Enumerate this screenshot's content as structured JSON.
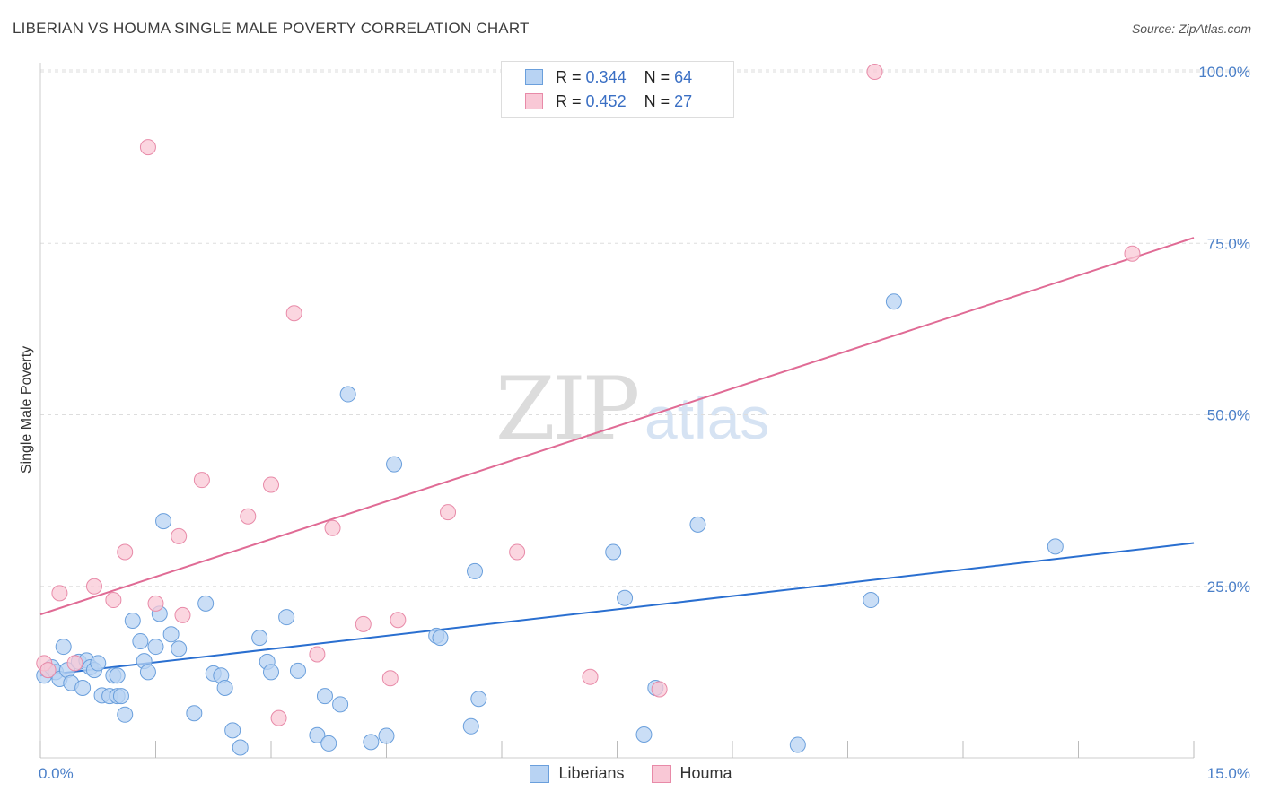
{
  "title": "LIBERIAN VS HOUMA SINGLE MALE POVERTY CORRELATION CHART",
  "source": "Source: ZipAtlas.com",
  "watermark": {
    "zip": "ZIP",
    "atlas": "atlas"
  },
  "legend": {
    "liberians": {
      "r_label": "R =",
      "r": "0.344",
      "n_label": "N =",
      "n": "64"
    },
    "houma": {
      "r_label": "R =",
      "r": "0.452",
      "n_label": "N =",
      "n": "27"
    }
  },
  "bottom_legend": {
    "liberians": "Liberians",
    "houma": "Houma"
  },
  "colors": {
    "liberians_fill": "#b8d3f3",
    "liberians_stroke": "#6a9fdc",
    "liberians_line": "#2a6fd0",
    "houma_fill": "#f9c8d6",
    "houma_stroke": "#e88aa8",
    "houma_line": "#e06b95"
  },
  "chart_data": {
    "type": "scatter",
    "title": "LIBERIAN VS HOUMA SINGLE MALE POVERTY CORRELATION CHART",
    "xlabel": "",
    "ylabel": "Single Male Poverty",
    "xlim": [
      0,
      15
    ],
    "ylim": [
      0,
      102
    ],
    "x_tick_labels": [
      "0.0%",
      "15.0%"
    ],
    "y_ticks": [
      25,
      50,
      75,
      100
    ],
    "y_tick_labels": [
      "25.0%",
      "50.0%",
      "75.0%",
      "100.0%"
    ],
    "grid": true,
    "legend_position": "top-center",
    "series": [
      {
        "name": "Liberians",
        "r": 0.344,
        "n": 64,
        "trend": {
          "x": [
            0,
            15
          ],
          "y": [
            12.0,
            31.3
          ]
        },
        "points": [
          [
            0.05,
            12.0
          ],
          [
            0.1,
            12.8
          ],
          [
            0.15,
            13.2
          ],
          [
            0.2,
            12.5
          ],
          [
            0.25,
            11.5
          ],
          [
            0.3,
            16.2
          ],
          [
            0.35,
            12.8
          ],
          [
            0.4,
            10.9
          ],
          [
            0.5,
            14.0
          ],
          [
            0.55,
            10.2
          ],
          [
            0.6,
            14.2
          ],
          [
            0.65,
            13.2
          ],
          [
            0.7,
            12.8
          ],
          [
            0.75,
            13.8
          ],
          [
            0.8,
            9.1
          ],
          [
            0.9,
            9.0
          ],
          [
            0.95,
            12.0
          ],
          [
            1.1,
            6.3
          ],
          [
            1.0,
            9.0
          ],
          [
            1.05,
            9.0
          ],
          [
            1.0,
            12.0
          ],
          [
            1.2,
            20.0
          ],
          [
            1.3,
            17.0
          ],
          [
            1.35,
            14.1
          ],
          [
            1.4,
            12.5
          ],
          [
            1.5,
            16.2
          ],
          [
            1.55,
            21.0
          ],
          [
            1.6,
            34.5
          ],
          [
            1.7,
            18.0
          ],
          [
            1.8,
            15.9
          ],
          [
            2.0,
            6.5
          ],
          [
            2.15,
            22.5
          ],
          [
            2.25,
            12.3
          ],
          [
            2.35,
            12.0
          ],
          [
            2.4,
            10.2
          ],
          [
            2.5,
            4.0
          ],
          [
            2.6,
            1.5
          ],
          [
            2.85,
            17.5
          ],
          [
            2.95,
            14.0
          ],
          [
            3.0,
            12.5
          ],
          [
            3.2,
            20.5
          ],
          [
            3.35,
            12.7
          ],
          [
            3.6,
            3.3
          ],
          [
            3.7,
            9.0
          ],
          [
            3.75,
            2.1
          ],
          [
            3.9,
            7.8
          ],
          [
            4.0,
            53.0
          ],
          [
            4.3,
            2.3
          ],
          [
            4.5,
            3.2
          ],
          [
            4.6,
            42.8
          ],
          [
            5.15,
            17.8
          ],
          [
            5.2,
            17.5
          ],
          [
            5.6,
            4.6
          ],
          [
            5.65,
            27.2
          ],
          [
            5.7,
            8.6
          ],
          [
            7.45,
            30.0
          ],
          [
            7.6,
            23.3
          ],
          [
            7.85,
            3.4
          ],
          [
            8.0,
            10.2
          ],
          [
            8.55,
            34.0
          ],
          [
            9.85,
            1.9
          ],
          [
            10.8,
            23.0
          ],
          [
            11.1,
            66.5
          ],
          [
            13.2,
            30.8
          ]
        ]
      },
      {
        "name": "Houma",
        "r": 0.452,
        "n": 27,
        "trend": {
          "x": [
            0,
            15
          ],
          "y": [
            20.9,
            75.8
          ]
        },
        "points": [
          [
            0.05,
            13.8
          ],
          [
            0.1,
            12.8
          ],
          [
            0.25,
            24.0
          ],
          [
            0.45,
            13.8
          ],
          [
            0.7,
            25.0
          ],
          [
            0.95,
            23.0
          ],
          [
            1.1,
            30.0
          ],
          [
            1.4,
            89.0
          ],
          [
            1.5,
            22.5
          ],
          [
            1.8,
            32.3
          ],
          [
            1.85,
            20.8
          ],
          [
            2.1,
            40.5
          ],
          [
            2.7,
            35.2
          ],
          [
            3.1,
            5.8
          ],
          [
            3.0,
            39.8
          ],
          [
            3.3,
            64.8
          ],
          [
            3.6,
            15.1
          ],
          [
            3.8,
            33.5
          ],
          [
            4.2,
            19.5
          ],
          [
            4.55,
            11.6
          ],
          [
            4.65,
            20.1
          ],
          [
            5.3,
            35.8
          ],
          [
            6.2,
            30.0
          ],
          [
            7.15,
            11.8
          ],
          [
            8.05,
            10.0
          ],
          [
            10.85,
            100.0
          ],
          [
            14.2,
            73.5
          ]
        ]
      }
    ]
  }
}
